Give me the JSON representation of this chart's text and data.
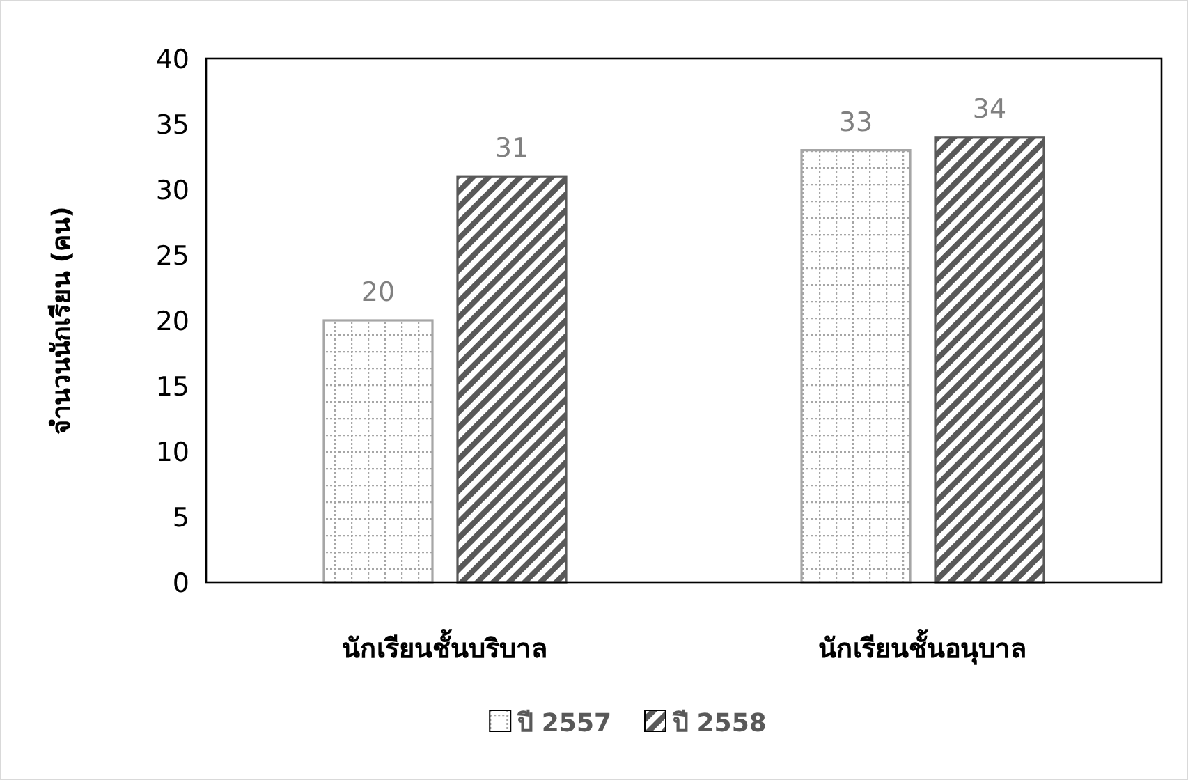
{
  "chart_data": {
    "type": "bar",
    "ylabel": "จำนวนนักเรียน (คน)",
    "categories": [
      "นักเรียนชั้นบริบาล",
      "นักเรียนชั้นอนุบาล"
    ],
    "series": [
      {
        "name": "ปี 2557",
        "color": "#a6a6a6",
        "values": [
          20,
          33
        ]
      },
      {
        "name": "ปี 2558",
        "color": "#595959",
        "values": [
          31,
          34
        ]
      }
    ],
    "ylim": [
      0,
      40
    ],
    "yticks": [
      0,
      5,
      10,
      15,
      20,
      25,
      30,
      35,
      40
    ],
    "data_labels": true,
    "legend": "bottom",
    "grid": false
  }
}
